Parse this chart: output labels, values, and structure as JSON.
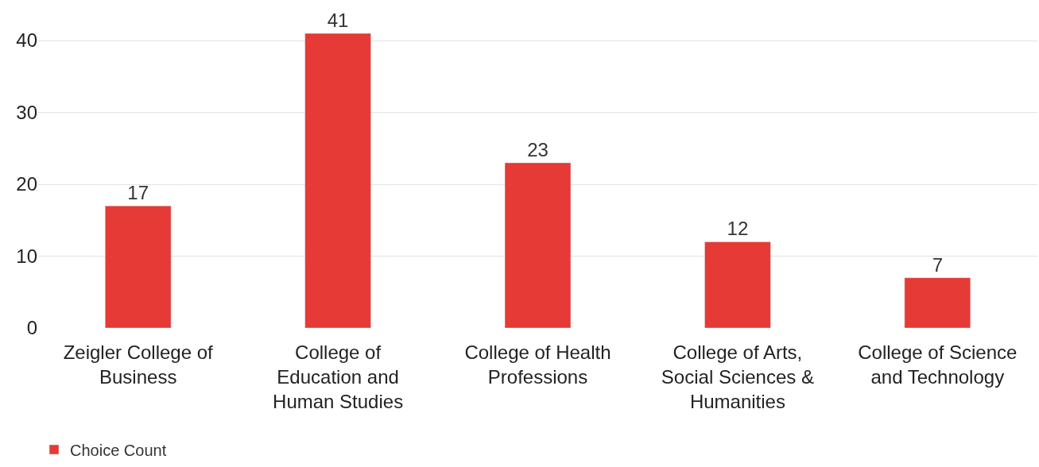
{
  "chart_data": {
    "type": "bar",
    "categories": [
      "Zeigler College of Business",
      "College of Education and Human Studies",
      "College of Health Professions",
      "College of Arts, Social Sciences & Humanities",
      "College of Science and Technology"
    ],
    "series": [
      {
        "name": "Choice Count",
        "color": "#e53a35",
        "values": [
          17,
          41,
          23,
          12,
          7
        ]
      }
    ],
    "ylim": [
      0,
      41
    ],
    "yticks": [
      0,
      10,
      20,
      30,
      40
    ],
    "grid": "y",
    "data_labels": true,
    "legend": "bottom left"
  }
}
